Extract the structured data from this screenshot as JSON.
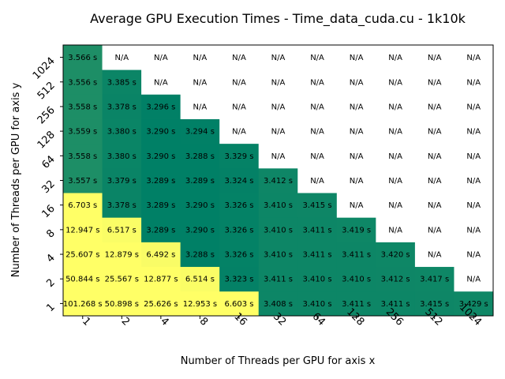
{
  "chart_data": {
    "type": "heatmap",
    "title": "Average GPU Execution Times - Time_data_cuda.cu - 1k10k",
    "xlabel": "Number of Threads per GPU for axis x",
    "ylabel": "Number of Threads per GPU for axis y",
    "x_categories": [
      "1",
      "2",
      "4",
      "8",
      "16",
      "32",
      "64",
      "128",
      "256",
      "512",
      "1024"
    ],
    "y_categories": [
      "1",
      "2",
      "4",
      "8",
      "16",
      "32",
      "64",
      "128",
      "256",
      "512",
      "1024"
    ],
    "unit_suffix": " s",
    "missing_label": "N/A",
    "colormap": "summer_r",
    "colors": {
      "low": "#008066",
      "high": "#ffff66",
      "missing": "#ffffff"
    },
    "grid": false,
    "values": [
      [
        101.268,
        50.898,
        25.626,
        12.953,
        6.603,
        3.408,
        3.41,
        3.411,
        3.411,
        3.415,
        3.429
      ],
      [
        50.844,
        25.567,
        12.877,
        6.514,
        3.323,
        3.411,
        3.41,
        3.41,
        3.412,
        3.417,
        null
      ],
      [
        25.607,
        12.879,
        6.492,
        3.288,
        3.326,
        3.41,
        3.411,
        3.411,
        3.42,
        null,
        null
      ],
      [
        12.947,
        6.517,
        3.289,
        3.29,
        3.326,
        3.41,
        3.411,
        3.419,
        null,
        null,
        null
      ],
      [
        6.703,
        3.378,
        3.289,
        3.29,
        3.326,
        3.41,
        3.415,
        null,
        null,
        null,
        null
      ],
      [
        3.557,
        3.379,
        3.289,
        3.289,
        3.324,
        3.412,
        null,
        null,
        null,
        null,
        null
      ],
      [
        3.558,
        3.38,
        3.29,
        3.288,
        3.329,
        null,
        null,
        null,
        null,
        null,
        null
      ],
      [
        3.559,
        3.38,
        3.29,
        3.294,
        null,
        null,
        null,
        null,
        null,
        null,
        null
      ],
      [
        3.558,
        3.378,
        3.296,
        null,
        null,
        null,
        null,
        null,
        null,
        null,
        null
      ],
      [
        3.556,
        3.385,
        null,
        null,
        null,
        null,
        null,
        null,
        null,
        null,
        null
      ],
      [
        3.566,
        null,
        null,
        null,
        null,
        null,
        null,
        null,
        null,
        null,
        null
      ]
    ],
    "cell_text": [
      [
        "101.268 s",
        "50.898 s",
        "25.626 s",
        "12.953 s",
        "6.603 s",
        "3.408 s",
        "3.410 s",
        "3.411 s",
        "3.411 s",
        "3.415 s",
        "3.429 s"
      ],
      [
        "50.844 s",
        "25.567 s",
        "12.877 s",
        "6.514 s",
        "3.323 s",
        "3.411 s",
        "3.410 s",
        "3.410 s",
        "3.412 s",
        "3.417 s",
        "N/A"
      ],
      [
        "25.607 s",
        "12.879 s",
        "6.492 s",
        "3.288 s",
        "3.326 s",
        "3.410 s",
        "3.411 s",
        "3.411 s",
        "3.420 s",
        "N/A",
        "N/A"
      ],
      [
        "12.947 s",
        "6.517 s",
        "3.289 s",
        "3.290 s",
        "3.326 s",
        "3.410 s",
        "3.411 s",
        "3.419 s",
        "N/A",
        "N/A",
        "N/A"
      ],
      [
        "6.703 s",
        "3.378 s",
        "3.289 s",
        "3.290 s",
        "3.326 s",
        "3.410 s",
        "3.415 s",
        "N/A",
        "N/A",
        "N/A",
        "N/A"
      ],
      [
        "3.557 s",
        "3.379 s",
        "3.289 s",
        "3.289 s",
        "3.324 s",
        "3.412 s",
        "N/A",
        "N/A",
        "N/A",
        "N/A",
        "N/A"
      ],
      [
        "3.558 s",
        "3.380 s",
        "3.290 s",
        "3.288 s",
        "3.329 s",
        "N/A",
        "N/A",
        "N/A",
        "N/A",
        "N/A",
        "N/A"
      ],
      [
        "3.559 s",
        "3.380 s",
        "3.290 s",
        "3.294 s",
        "N/A",
        "N/A",
        "N/A",
        "N/A",
        "N/A",
        "N/A",
        "N/A"
      ],
      [
        "3.558 s",
        "3.378 s",
        "3.296 s",
        "N/A",
        "N/A",
        "N/A",
        "N/A",
        "N/A",
        "N/A",
        "N/A",
        "N/A"
      ],
      [
        "3.556 s",
        "3.385 s",
        "N/A",
        "N/A",
        "N/A",
        "N/A",
        "N/A",
        "N/A",
        "N/A",
        "N/A",
        "N/A"
      ],
      [
        "3.566 s",
        "N/A",
        "N/A",
        "N/A",
        "N/A",
        "N/A",
        "N/A",
        "N/A",
        "N/A",
        "N/A",
        "N/A"
      ]
    ]
  }
}
